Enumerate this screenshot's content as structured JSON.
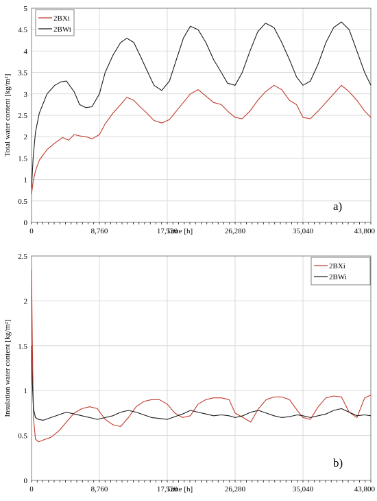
{
  "chart_data": [
    {
      "type": "line",
      "panel_label": "a)",
      "xlabel": "Time [h]",
      "ylabel": "Total water content [kg/m²]",
      "xlim": [
        0,
        43800
      ],
      "ylim": [
        0,
        5
      ],
      "xticks": [
        0,
        8760,
        17520,
        26280,
        35040,
        43800
      ],
      "xtick_labels": [
        "0",
        "8,760",
        "17,520",
        "26,280",
        "35,040",
        "43,800"
      ],
      "yticks": [
        0,
        0.5,
        1,
        1.5,
        2,
        2.5,
        3,
        3.5,
        4,
        4.5,
        5
      ],
      "ytick_labels": [
        "0",
        "0.5",
        "1",
        "1.5",
        "2",
        "2.5",
        "3",
        "3.5",
        "4",
        "4.5",
        "5"
      ],
      "grid": true,
      "legend_position": "top-left",
      "series": [
        {
          "name": "2BXi",
          "color": "#c0392b",
          "x": [
            0,
            200,
            500,
            1000,
            2000,
            3000,
            4000,
            4800,
            5500,
            6200,
            7000,
            7800,
            8760,
            9500,
            10500,
            11500,
            12300,
            13200,
            14000,
            14900,
            15800,
            16800,
            17800,
            18700,
            19600,
            20500,
            21500,
            22500,
            23500,
            24500,
            25300,
            26280,
            27200,
            28200,
            29200,
            30200,
            31300,
            32300,
            33300,
            34200,
            35040,
            36000,
            37000,
            38000,
            39000,
            40000,
            41000,
            42000,
            43000,
            43800
          ],
          "y": [
            0.65,
            0.95,
            1.2,
            1.45,
            1.7,
            1.85,
            1.98,
            1.92,
            2.05,
            2.02,
            2.0,
            1.95,
            2.05,
            2.3,
            2.55,
            2.75,
            2.92,
            2.85,
            2.7,
            2.55,
            2.38,
            2.32,
            2.4,
            2.6,
            2.8,
            3.0,
            3.1,
            2.95,
            2.8,
            2.75,
            2.6,
            2.45,
            2.42,
            2.6,
            2.85,
            3.05,
            3.2,
            3.1,
            2.85,
            2.75,
            2.45,
            2.42,
            2.6,
            2.8,
            3.0,
            3.2,
            3.05,
            2.85,
            2.6,
            2.45
          ]
        },
        {
          "name": "2BWi",
          "color": "#1a1a1a",
          "x": [
            0,
            200,
            500,
            1000,
            2000,
            3000,
            3800,
            4500,
            5500,
            6200,
            7000,
            7800,
            8760,
            9500,
            10500,
            11500,
            12300,
            13200,
            14000,
            14900,
            15800,
            16800,
            17800,
            18700,
            19600,
            20500,
            21500,
            22500,
            23500,
            24500,
            25300,
            26280,
            27200,
            28200,
            29200,
            30200,
            31300,
            32300,
            33300,
            34200,
            35040,
            36000,
            37000,
            38000,
            39000,
            40000,
            41000,
            42000,
            43000,
            43800
          ],
          "y": [
            0.8,
            1.5,
            2.1,
            2.55,
            3.0,
            3.2,
            3.28,
            3.3,
            3.05,
            2.75,
            2.68,
            2.7,
            3.0,
            3.5,
            3.9,
            4.2,
            4.3,
            4.2,
            3.9,
            3.55,
            3.2,
            3.08,
            3.3,
            3.8,
            4.3,
            4.58,
            4.5,
            4.2,
            3.8,
            3.5,
            3.25,
            3.2,
            3.5,
            4.0,
            4.45,
            4.65,
            4.55,
            4.2,
            3.8,
            3.4,
            3.2,
            3.3,
            3.7,
            4.2,
            4.55,
            4.68,
            4.5,
            4.0,
            3.5,
            3.2
          ]
        }
      ]
    },
    {
      "type": "line",
      "panel_label": "b)",
      "xlabel": "Time [h]",
      "ylabel": "Insulation water content [kg/m²]",
      "xlim": [
        0,
        43800
      ],
      "ylim": [
        0,
        2.5
      ],
      "xticks": [
        0,
        8760,
        17520,
        26280,
        35040,
        43800
      ],
      "xtick_labels": [
        "0",
        "8,760",
        "17,520",
        "26,280",
        "35,040",
        "43,800"
      ],
      "yticks": [
        0,
        0.5,
        1,
        1.5,
        2,
        2.5
      ],
      "ytick_labels": [
        "0",
        "0.5",
        "1",
        "1.5",
        "2",
        "2.5"
      ],
      "grid": true,
      "legend_position": "top-right",
      "series": [
        {
          "name": "2BXi",
          "color": "#c0392b",
          "x": [
            0,
            100,
            250,
            500,
            900,
            1500,
            2500,
            3500,
            4500,
            5500,
            6500,
            7500,
            8500,
            9500,
            10500,
            11500,
            12500,
            13500,
            14500,
            15500,
            16500,
            17520,
            18500,
            19500,
            20500,
            21500,
            22500,
            23500,
            24500,
            25500,
            26280,
            27300,
            28300,
            29300,
            30300,
            31300,
            32300,
            33300,
            34300,
            35040,
            36000,
            37000,
            38000,
            39000,
            40000,
            41000,
            42000,
            43000,
            43800
          ],
          "y": [
            2.35,
            1.6,
            0.7,
            0.46,
            0.43,
            0.45,
            0.48,
            0.55,
            0.65,
            0.75,
            0.8,
            0.82,
            0.8,
            0.68,
            0.62,
            0.6,
            0.7,
            0.82,
            0.88,
            0.9,
            0.9,
            0.85,
            0.75,
            0.7,
            0.72,
            0.85,
            0.9,
            0.92,
            0.92,
            0.9,
            0.75,
            0.7,
            0.65,
            0.8,
            0.9,
            0.93,
            0.93,
            0.9,
            0.78,
            0.7,
            0.68,
            0.82,
            0.92,
            0.94,
            0.93,
            0.76,
            0.7,
            0.92,
            0.95
          ]
        },
        {
          "name": "2BWi",
          "color": "#1a1a1a",
          "x": [
            0,
            100,
            250,
            500,
            900,
            1500,
            2500,
            3500,
            4500,
            5500,
            6500,
            7500,
            8500,
            9500,
            10500,
            11500,
            12500,
            13500,
            14500,
            15500,
            16500,
            17520,
            18500,
            19500,
            20500,
            21500,
            22500,
            23500,
            24500,
            25500,
            26280,
            27300,
            28300,
            29300,
            30300,
            31300,
            32300,
            33300,
            34300,
            35040,
            36000,
            37000,
            38000,
            39000,
            40000,
            41000,
            42000,
            43000,
            43800
          ],
          "y": [
            1.5,
            1.1,
            0.8,
            0.7,
            0.68,
            0.67,
            0.7,
            0.73,
            0.76,
            0.74,
            0.72,
            0.7,
            0.68,
            0.7,
            0.72,
            0.76,
            0.78,
            0.76,
            0.73,
            0.7,
            0.69,
            0.68,
            0.71,
            0.74,
            0.78,
            0.76,
            0.74,
            0.72,
            0.73,
            0.72,
            0.7,
            0.72,
            0.76,
            0.78,
            0.75,
            0.72,
            0.7,
            0.71,
            0.73,
            0.72,
            0.7,
            0.72,
            0.74,
            0.78,
            0.8,
            0.76,
            0.72,
            0.73,
            0.72
          ]
        }
      ]
    }
  ]
}
